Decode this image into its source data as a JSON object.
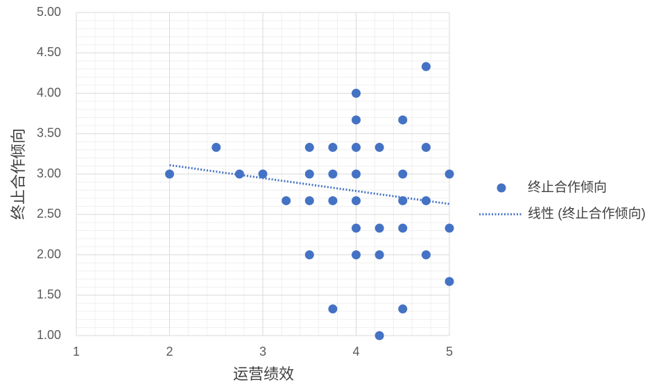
{
  "chart_data": {
    "type": "scatter",
    "x_label": "运营绩效",
    "y_label": "终止合作倾向",
    "xlim": [
      1,
      5
    ],
    "xticks": [
      1,
      2,
      3,
      4,
      5
    ],
    "ylim": [
      1,
      5
    ],
    "yticks": [
      {
        "value": 1,
        "label": "1.00"
      },
      {
        "value": 1.5,
        "label": "1.50"
      },
      {
        "value": 2,
        "label": "2.00"
      },
      {
        "value": 2.5,
        "label": "2.50"
      },
      {
        "value": 3,
        "label": "3.00"
      },
      {
        "value": 3.5,
        "label": "3.50"
      },
      {
        "value": 4,
        "label": "4.00"
      },
      {
        "value": 4.5,
        "label": "4.50"
      },
      {
        "value": 5,
        "label": "5.00"
      }
    ],
    "grid": true,
    "series": [
      {
        "name": "终止合作倾向",
        "color": "#4472c4",
        "x": [
          2,
          2.5,
          2.75,
          3,
          3.25,
          3.5,
          3.5,
          3.5,
          3.5,
          3.75,
          3.75,
          3.75,
          3.75,
          4,
          4,
          4,
          4,
          4,
          4,
          4,
          4.25,
          4.25,
          4.25,
          4.25,
          4.5,
          4.5,
          4.5,
          4.5,
          4.5,
          4.75,
          4.75,
          4.75,
          4.75,
          5,
          5,
          5
        ],
        "values": [
          3,
          3.33,
          3,
          3,
          2.67,
          3.33,
          3,
          2.67,
          2,
          3.33,
          3,
          2.67,
          1.33,
          4,
          3.67,
          3.33,
          3,
          2.67,
          2.33,
          2,
          3.33,
          2.33,
          2,
          1,
          3.67,
          3,
          2.67,
          2.33,
          1.33,
          4.33,
          3.33,
          2.67,
          2,
          3,
          2.33,
          1.67
        ]
      }
    ],
    "trendline": {
      "name": "线性 (终止合作倾向)",
      "color": "#4472c4",
      "x": [
        2,
        5
      ],
      "values": [
        3.11,
        2.63
      ]
    },
    "legend": "right"
  }
}
